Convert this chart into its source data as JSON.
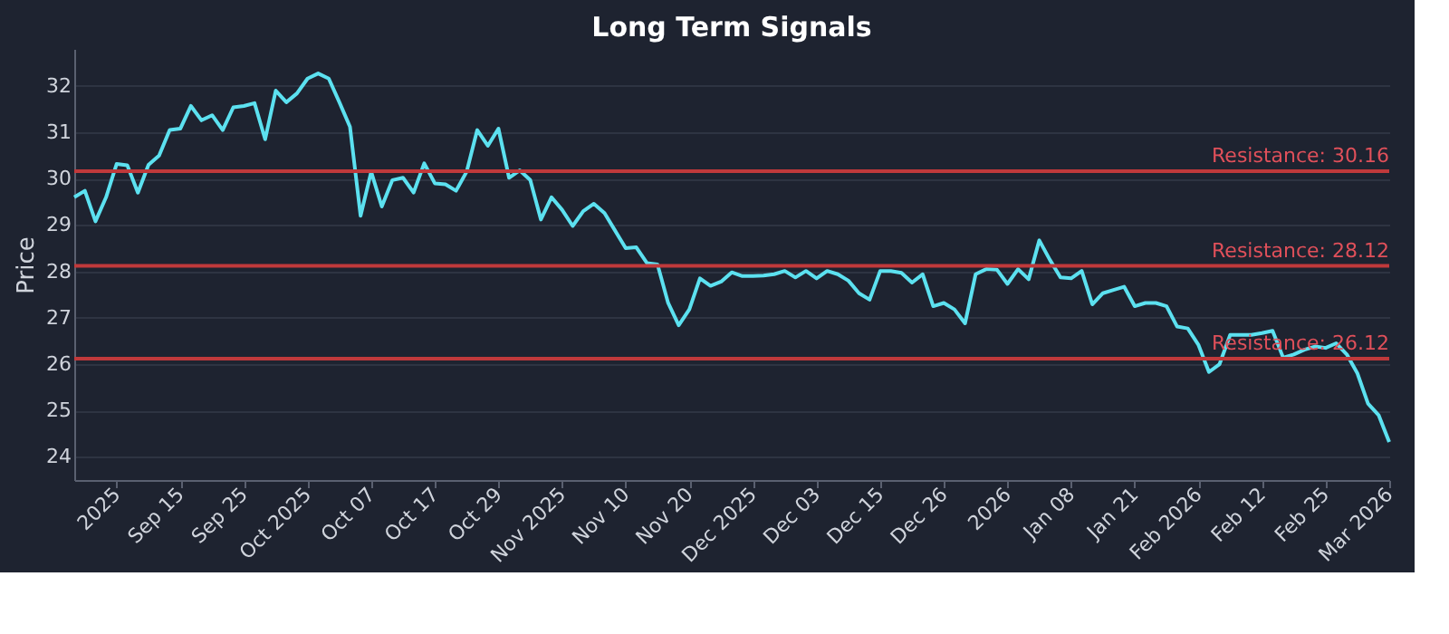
{
  "chart_data": {
    "type": "line",
    "title": "Long Term Signals",
    "ylabel": "Price",
    "categories": [
      null,
      null,
      null,
      null,
      "2025",
      null,
      null,
      null,
      null,
      null,
      "Sep 15",
      null,
      null,
      null,
      null,
      null,
      "Sep 25",
      null,
      null,
      null,
      null,
      null,
      "Oct 2025",
      null,
      null,
      null,
      null,
      null,
      "Oct 07",
      null,
      null,
      null,
      null,
      null,
      "Oct 17",
      null,
      null,
      null,
      null,
      null,
      "Oct 29",
      null,
      null,
      null,
      null,
      null,
      "Nov 2025",
      null,
      null,
      null,
      null,
      null,
      "Nov 10",
      null,
      null,
      null,
      null,
      null,
      "Nov 20",
      null,
      null,
      null,
      null,
      null,
      "Dec 2025",
      null,
      null,
      null,
      null,
      null,
      "Dec 03",
      null,
      null,
      null,
      null,
      null,
      "Dec 15",
      null,
      null,
      null,
      null,
      null,
      "Dec 26",
      null,
      null,
      null,
      null,
      null,
      "2026",
      null,
      null,
      null,
      null,
      null,
      "Jan 08",
      null,
      null,
      null,
      null,
      null,
      "Jan 21",
      null,
      null,
      null,
      null,
      null,
      "Feb 2026",
      null,
      null,
      null,
      null,
      null,
      "Feb 12",
      null,
      null,
      null,
      null,
      null,
      "Feb 25",
      null,
      null,
      null,
      null,
      null,
      "Mar 2026"
    ],
    "series": [
      {
        "color": "#5ce1f0",
        "values": [
          29.6,
          29.74,
          29.08,
          29.6,
          30.32,
          30.29,
          29.7,
          30.3,
          30.5,
          31.05,
          31.08,
          31.57,
          31.26,
          31.37,
          31.05,
          31.54,
          31.57,
          31.63,
          30.85,
          31.9,
          31.65,
          31.84,
          32.16,
          32.27,
          32.16,
          31.65,
          31.12,
          29.2,
          30.15,
          29.4,
          29.97,
          30.02,
          29.7,
          30.33,
          29.9,
          29.88,
          29.74,
          30.15,
          31.05,
          30.71,
          31.08,
          30.02,
          30.18,
          29.97,
          29.12,
          29.6,
          29.33,
          28.98,
          29.3,
          29.46,
          29.26,
          28.88,
          28.5,
          28.52,
          28.18,
          28.15,
          27.32,
          26.84,
          27.18,
          27.85,
          27.69,
          27.78,
          27.98,
          27.9,
          27.9,
          27.91,
          27.94,
          28.01,
          27.87,
          28.01,
          27.85,
          28.01,
          27.94,
          27.8,
          27.53,
          27.39,
          28.01,
          28.01,
          27.97,
          27.76,
          27.94,
          27.25,
          27.32,
          27.18,
          26.88,
          27.94,
          28.05,
          28.04,
          27.73,
          28.05,
          27.83,
          28.67,
          28.25,
          27.87,
          27.85,
          28.01,
          27.29,
          27.53,
          27.6,
          27.67,
          27.25,
          27.32,
          27.32,
          27.25,
          26.81,
          26.77,
          26.42,
          25.83,
          26.0,
          26.63,
          26.63,
          26.63,
          26.67,
          26.72,
          26.14,
          26.21,
          26.31,
          26.38,
          26.35,
          26.45,
          26.21,
          25.8,
          25.15,
          24.9,
          24.32
        ]
      }
    ],
    "ylim": [
      23.5,
      32.8
    ],
    "yticks": [
      24,
      25,
      26,
      27,
      28,
      29,
      30,
      31,
      32
    ],
    "grid": "y",
    "marker": "none",
    "line_style": "solid",
    "ref_lines": [
      {
        "axis": "y",
        "value": 30.16,
        "label": "Resistance: 30.16",
        "color": "#c0393b"
      },
      {
        "axis": "y",
        "value": 28.12,
        "label": "Resistance: 28.12",
        "color": "#c0393b"
      },
      {
        "axis": "y",
        "value": 26.12,
        "label": "Resistance: 26.12",
        "color": "#c0393b"
      }
    ]
  }
}
